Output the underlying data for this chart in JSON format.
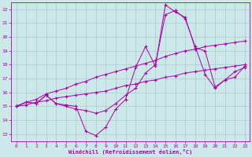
{
  "xlabel": "Windchill (Refroidissement éolien,°C)",
  "xlim": [
    -0.5,
    23.5
  ],
  "ylim": [
    12.5,
    22.5
  ],
  "xticks": [
    0,
    1,
    2,
    3,
    4,
    5,
    6,
    7,
    8,
    9,
    10,
    11,
    12,
    13,
    14,
    15,
    16,
    17,
    18,
    19,
    20,
    21,
    22,
    23
  ],
  "yticks": [
    13,
    14,
    15,
    16,
    17,
    18,
    19,
    20,
    21,
    22
  ],
  "bg_color": "#cce8e8",
  "line_color": "#aa00aa",
  "grid_color": "#aacccc",
  "series": [
    [
      15.0,
      15.3,
      15.2,
      15.8,
      15.2,
      15.1,
      15.0,
      13.2,
      12.9,
      13.5,
      14.8,
      15.5,
      17.8,
      19.3,
      17.9,
      22.3,
      21.8,
      21.4,
      19.2,
      19.0,
      16.4,
      16.9,
      17.5,
      17.8
    ],
    [
      15.0,
      15.3,
      15.5,
      15.9,
      16.1,
      16.3,
      16.6,
      16.8,
      17.1,
      17.3,
      17.5,
      17.7,
      17.9,
      18.1,
      18.3,
      18.6,
      18.8,
      19.0,
      19.1,
      19.3,
      19.4,
      19.5,
      19.6,
      19.7
    ],
    [
      15.0,
      15.1,
      15.3,
      15.4,
      15.6,
      15.7,
      15.8,
      15.9,
      16.0,
      16.1,
      16.3,
      16.5,
      16.6,
      16.8,
      16.9,
      17.1,
      17.2,
      17.4,
      17.5,
      17.6,
      17.7,
      17.8,
      17.9,
      18.0
    ],
    [
      15.0,
      15.3,
      15.2,
      15.8,
      15.2,
      15.0,
      14.8,
      14.7,
      14.5,
      14.7,
      15.2,
      15.8,
      16.3,
      17.4,
      18.0,
      21.6,
      21.9,
      21.3,
      19.3,
      17.3,
      16.3,
      16.9,
      17.1,
      17.9
    ]
  ]
}
